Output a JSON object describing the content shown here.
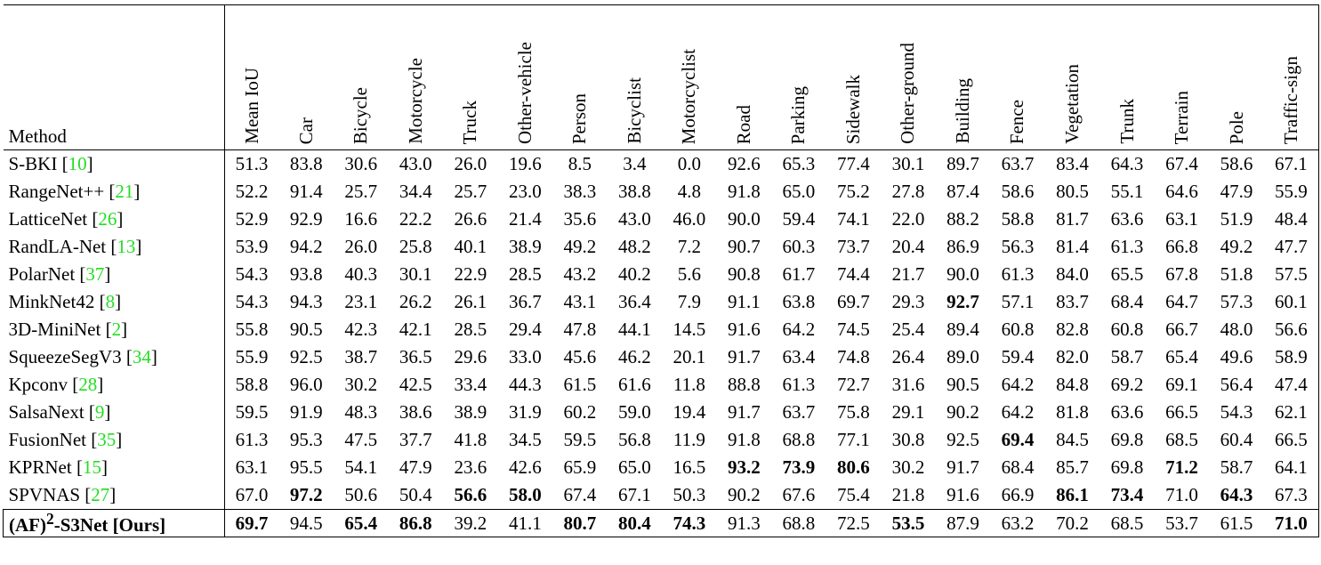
{
  "table": {
    "header": {
      "method": "Method",
      "columns": [
        "Mean IoU",
        "Car",
        "Bicycle",
        "Motorcycle",
        "Truck",
        "Other-vehicle",
        "Person",
        "Bicyclist",
        "Motorcyclist",
        "Road",
        "Parking",
        "Sidewalk",
        "Other-ground",
        "Building",
        "Fence",
        "Vegetation",
        "Trunk",
        "Terrain",
        "Pole",
        "Traffic-sign"
      ]
    },
    "bracket_open": "[",
    "bracket_close": "]",
    "ref_color": "#22dd22",
    "rows": [
      {
        "method": "S-BKI",
        "ref": "10",
        "values": [
          "51.3",
          "83.8",
          "30.6",
          "43.0",
          "26.0",
          "19.6",
          "8.5",
          "3.4",
          "0.0",
          "92.6",
          "65.3",
          "77.4",
          "30.1",
          "89.7",
          "63.7",
          "83.4",
          "64.3",
          "67.4",
          "58.6",
          "67.1"
        ],
        "bold": []
      },
      {
        "method": "RangeNet++",
        "ref": "21",
        "values": [
          "52.2",
          "91.4",
          "25.7",
          "34.4",
          "25.7",
          "23.0",
          "38.3",
          "38.8",
          "4.8",
          "91.8",
          "65.0",
          "75.2",
          "27.8",
          "87.4",
          "58.6",
          "80.5",
          "55.1",
          "64.6",
          "47.9",
          "55.9"
        ],
        "bold": []
      },
      {
        "method": "LatticeNet",
        "ref": "26",
        "values": [
          "52.9",
          "92.9",
          "16.6",
          "22.2",
          "26.6",
          "21.4",
          "35.6",
          "43.0",
          "46.0",
          "90.0",
          "59.4",
          "74.1",
          "22.0",
          "88.2",
          "58.8",
          "81.7",
          "63.6",
          "63.1",
          "51.9",
          "48.4"
        ],
        "bold": []
      },
      {
        "method": "RandLA-Net",
        "ref": "13",
        "values": [
          "53.9",
          "94.2",
          "26.0",
          "25.8",
          "40.1",
          "38.9",
          "49.2",
          "48.2",
          "7.2",
          "90.7",
          "60.3",
          "73.7",
          "20.4",
          "86.9",
          "56.3",
          "81.4",
          "61.3",
          "66.8",
          "49.2",
          "47.7"
        ],
        "bold": []
      },
      {
        "method": "PolarNet",
        "ref": "37",
        "values": [
          "54.3",
          "93.8",
          "40.3",
          "30.1",
          "22.9",
          "28.5",
          "43.2",
          "40.2",
          "5.6",
          "90.8",
          "61.7",
          "74.4",
          "21.7",
          "90.0",
          "61.3",
          "84.0",
          "65.5",
          "67.8",
          "51.8",
          "57.5"
        ],
        "bold": []
      },
      {
        "method": "MinkNet42",
        "ref": "8",
        "values": [
          "54.3",
          "94.3",
          "23.1",
          "26.2",
          "26.1",
          "36.7",
          "43.1",
          "36.4",
          "7.9",
          "91.1",
          "63.8",
          "69.7",
          "29.3",
          "92.7",
          "57.1",
          "83.7",
          "68.4",
          "64.7",
          "57.3",
          "60.1"
        ],
        "bold": [
          13
        ]
      },
      {
        "method": "3D-MiniNet",
        "ref": "2",
        "values": [
          "55.8",
          "90.5",
          "42.3",
          "42.1",
          "28.5",
          "29.4",
          "47.8",
          "44.1",
          "14.5",
          "91.6",
          "64.2",
          "74.5",
          "25.4",
          "89.4",
          "60.8",
          "82.8",
          "60.8",
          "66.7",
          "48.0",
          "56.6"
        ],
        "bold": []
      },
      {
        "method": "SqueezeSegV3",
        "ref": "34",
        "values": [
          "55.9",
          "92.5",
          "38.7",
          "36.5",
          "29.6",
          "33.0",
          "45.6",
          "46.2",
          "20.1",
          "91.7",
          "63.4",
          "74.8",
          "26.4",
          "89.0",
          "59.4",
          "82.0",
          "58.7",
          "65.4",
          "49.6",
          "58.9"
        ],
        "bold": []
      },
      {
        "method": "Kpconv",
        "ref": "28",
        "values": [
          "58.8",
          "96.0",
          "30.2",
          "42.5",
          "33.4",
          "44.3",
          "61.5",
          "61.6",
          "11.8",
          "88.8",
          "61.3",
          "72.7",
          "31.6",
          "90.5",
          "64.2",
          "84.8",
          "69.2",
          "69.1",
          "56.4",
          "47.4"
        ],
        "bold": []
      },
      {
        "method": "SalsaNext",
        "ref": "9",
        "values": [
          "59.5",
          "91.9",
          "48.3",
          "38.6",
          "38.9",
          "31.9",
          "60.2",
          "59.0",
          "19.4",
          "91.7",
          "63.7",
          "75.8",
          "29.1",
          "90.2",
          "64.2",
          "81.8",
          "63.6",
          "66.5",
          "54.3",
          "62.1"
        ],
        "bold": []
      },
      {
        "method": "FusionNet",
        "ref": "35",
        "values": [
          "61.3",
          "95.3",
          "47.5",
          "37.7",
          "41.8",
          "34.5",
          "59.5",
          "56.8",
          "11.9",
          "91.8",
          "68.8",
          "77.1",
          "30.8",
          "92.5",
          "69.4",
          "84.5",
          "69.8",
          "68.5",
          "60.4",
          "66.5"
        ],
        "bold": [
          14
        ]
      },
      {
        "method": "KPRNet",
        "ref": "15",
        "values": [
          "63.1",
          "95.5",
          "54.1",
          "47.9",
          "23.6",
          "42.6",
          "65.9",
          "65.0",
          "16.5",
          "93.2",
          "73.9",
          "80.6",
          "30.2",
          "91.7",
          "68.4",
          "85.7",
          "69.8",
          "71.2",
          "58.7",
          "64.1"
        ],
        "bold": [
          9,
          10,
          11,
          17
        ]
      },
      {
        "method": "SPVNAS",
        "ref": "27",
        "values": [
          "67.0",
          "97.2",
          "50.6",
          "50.4",
          "56.6",
          "58.0",
          "67.4",
          "67.1",
          "50.3",
          "90.2",
          "67.6",
          "75.4",
          "21.8",
          "91.6",
          "66.9",
          "86.1",
          "73.4",
          "71.0",
          "64.3",
          "67.3"
        ],
        "bold": [
          1,
          4,
          5,
          15,
          16,
          18
        ]
      }
    ],
    "ours": {
      "method_parts": [
        "(AF)",
        "2",
        "-S3Net"
      ],
      "tag": "[Ours]",
      "values": [
        "69.7",
        "94.5",
        "65.4",
        "86.8",
        "39.2",
        "41.1",
        "80.7",
        "80.4",
        "74.3",
        "91.3",
        "68.8",
        "72.5",
        "53.5",
        "87.9",
        "63.2",
        "70.2",
        "68.5",
        "53.7",
        "61.5",
        "71.0"
      ],
      "bold": [
        0,
        2,
        3,
        6,
        7,
        8,
        12,
        19
      ]
    }
  }
}
